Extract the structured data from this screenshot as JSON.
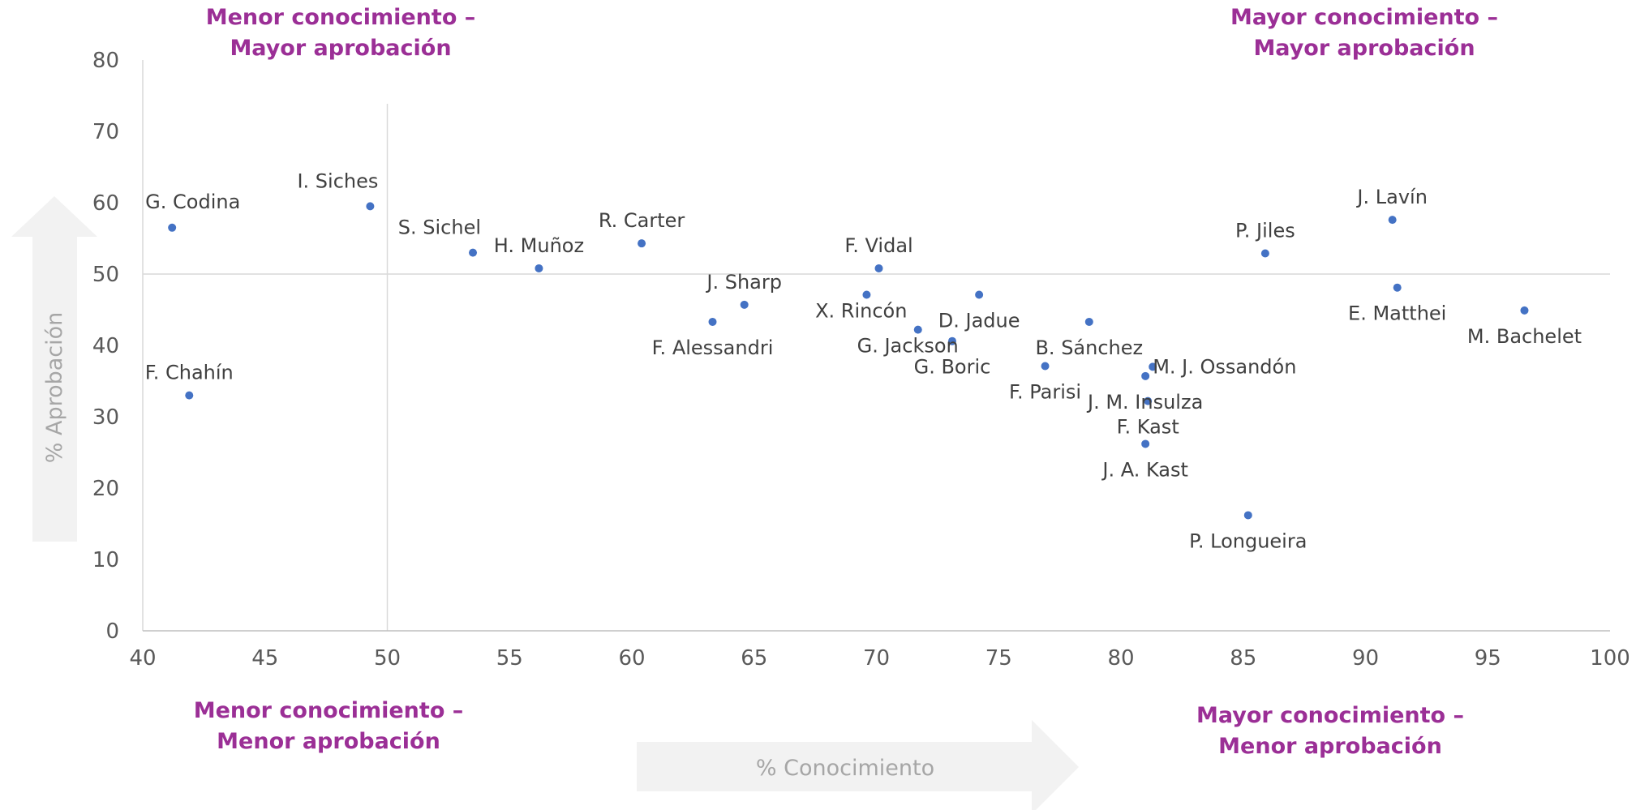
{
  "chart_data": {
    "type": "scatter",
    "xlabel": "% Conocimiento",
    "ylabel": "% Aprobación",
    "xlim": [
      40,
      100
    ],
    "ylim": [
      0,
      80
    ],
    "x_ticks": [
      "40",
      "45",
      "50",
      "55",
      "60",
      "65",
      "70",
      "75",
      "80",
      "85",
      "90",
      "95",
      "100"
    ],
    "y_ticks": [
      "0",
      "10",
      "20",
      "30",
      "40",
      "50",
      "60",
      "70",
      "80"
    ],
    "reference_lines": {
      "x": 50,
      "y": 50
    },
    "point_color": "#4472c4",
    "quadrant_color": "#9b2f96",
    "quadrants": {
      "top_left": [
        "Menor conocimiento –",
        "Mayor aprobación"
      ],
      "top_right": [
        "Mayor conocimiento –",
        "Mayor aprobación"
      ],
      "bottom_left": [
        "Menor conocimiento –",
        "Menor aprobación"
      ],
      "bottom_right": [
        "Mayor conocimiento –",
        "Menor aprobación"
      ]
    },
    "points": [
      {
        "name": "G. Codina",
        "x": 41.2,
        "y": 56.5,
        "label_pos": "above-right"
      },
      {
        "name": "F. Chahín",
        "x": 41.9,
        "y": 33,
        "label_pos": "above"
      },
      {
        "name": "I. Siches",
        "x": 49.3,
        "y": 59.5,
        "label_pos": "above-left"
      },
      {
        "name": "S. Sichel",
        "x": 53.5,
        "y": 53,
        "label_pos": "above-left"
      },
      {
        "name": "H. Muñoz",
        "x": 56.2,
        "y": 50.8,
        "label_pos": "above"
      },
      {
        "name": "R. Carter",
        "x": 60.4,
        "y": 54.3,
        "label_pos": "above"
      },
      {
        "name": "F. Alessandri",
        "x": 63.3,
        "y": 43.3,
        "label_pos": "below"
      },
      {
        "name": "J. Sharp",
        "x": 64.6,
        "y": 45.7,
        "label_pos": "above"
      },
      {
        "name": "X. Rincón",
        "x": 69.6,
        "y": 47.1,
        "label_pos": "below-left"
      },
      {
        "name": "F. Vidal",
        "x": 70.1,
        "y": 50.8,
        "label_pos": "above"
      },
      {
        "name": "G. Jackson",
        "x": 71.7,
        "y": 42.2,
        "label_pos": "below-left"
      },
      {
        "name": "G. Boric",
        "x": 73.1,
        "y": 40.6,
        "label_pos": "below"
      },
      {
        "name": "D. Jadue",
        "x": 74.2,
        "y": 47.1,
        "label_pos": "below"
      },
      {
        "name": "F. Parisi",
        "x": 76.9,
        "y": 37.1,
        "label_pos": "below"
      },
      {
        "name": "B. Sánchez",
        "x": 78.7,
        "y": 43.3,
        "label_pos": "below"
      },
      {
        "name": "M. J. Ossandón",
        "x": 81.3,
        "y": 37,
        "label_pos": "right"
      },
      {
        "name": "J. M. Insulza",
        "x": 81,
        "y": 35.7,
        "label_pos": "below"
      },
      {
        "name": "F. Kast",
        "x": 81.1,
        "y": 32.2,
        "label_pos": "below"
      },
      {
        "name": "J. A. Kast",
        "x": 81,
        "y": 26.2,
        "label_pos": "below"
      },
      {
        "name": "P. Longueira",
        "x": 85.2,
        "y": 16.2,
        "label_pos": "below"
      },
      {
        "name": "P. Jiles",
        "x": 85.9,
        "y": 52.9,
        "label_pos": "above"
      },
      {
        "name": "J. Lavín",
        "x": 91.1,
        "y": 57.6,
        "label_pos": "above"
      },
      {
        "name": "E. Matthei",
        "x": 91.3,
        "y": 48.1,
        "label_pos": "below"
      },
      {
        "name": "M. Bachelet",
        "x": 96.5,
        "y": 44.9,
        "label_pos": "below"
      }
    ]
  }
}
